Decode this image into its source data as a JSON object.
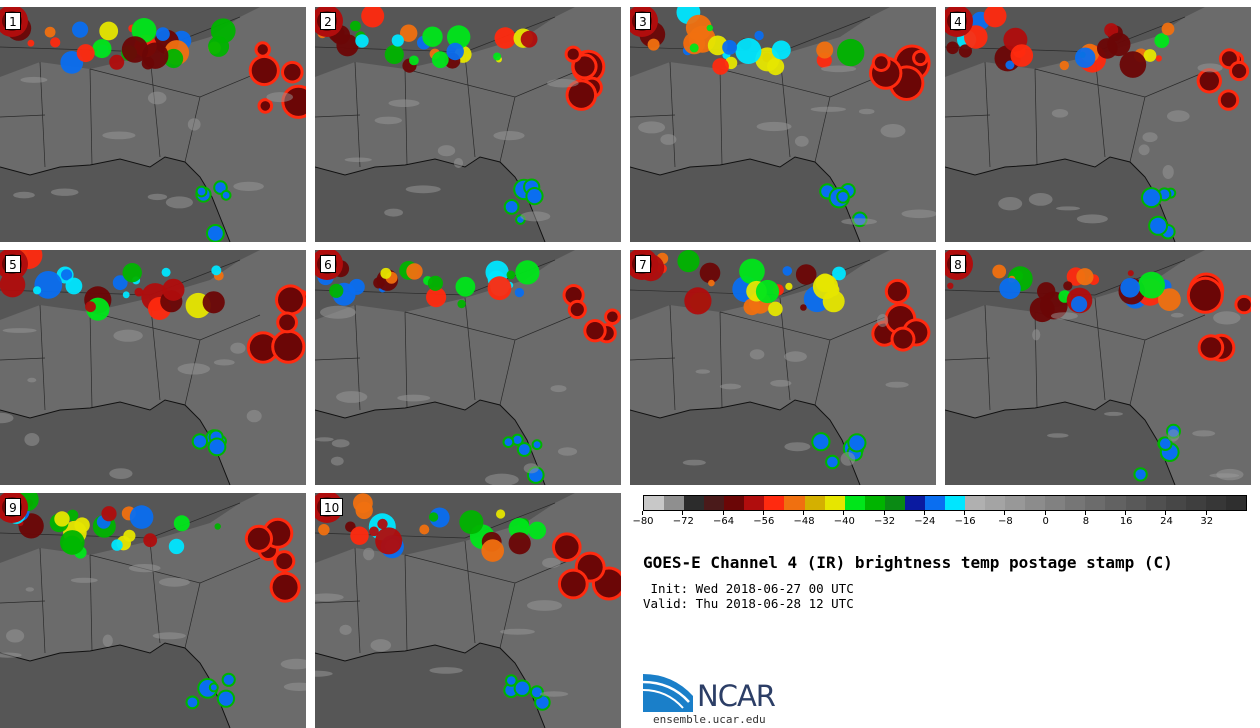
{
  "panels": [
    {
      "label": "1"
    },
    {
      "label": "2"
    },
    {
      "label": "3"
    },
    {
      "label": "4"
    },
    {
      "label": "5"
    },
    {
      "label": "6"
    },
    {
      "label": "7"
    },
    {
      "label": "8"
    },
    {
      "label": "9"
    },
    {
      "label": "10"
    }
  ],
  "colorbar": {
    "ticks": [
      "−80",
      "−72",
      "−64",
      "−56",
      "−48",
      "−40",
      "−32",
      "−24",
      "−16",
      "−8",
      "0",
      "8",
      "16",
      "24",
      "32"
    ],
    "colors": [
      "#c8c8c8",
      "#8f8f8f",
      "#2c2c2c",
      "#4a1a1a",
      "#6b0606",
      "#b00d0d",
      "#ff2a0f",
      "#f07010",
      "#d4b000",
      "#e6e600",
      "#00e61a",
      "#00b400",
      "#0a8a14",
      "#0a1aa0",
      "#0a6ef0",
      "#00e6ff",
      "#b0b0b0",
      "#a4a4a4",
      "#989898",
      "#8c8c8c",
      "#818181",
      "#767676",
      "#6c6c6c",
      "#626262",
      "#595959",
      "#505050",
      "#474747",
      "#3f3f3f",
      "#373737",
      "#2f2f2f"
    ]
  },
  "title": "GOES-E Channel 4 (IR) brightness temp postage stamp (C)",
  "init": " Init: Wed 2018-06-27 00 UTC",
  "valid": "Valid: Thu 2018-06-28 12 UTC",
  "logo": {
    "text": "NCAR"
  },
  "site": "ensemble.ucar.edu"
}
